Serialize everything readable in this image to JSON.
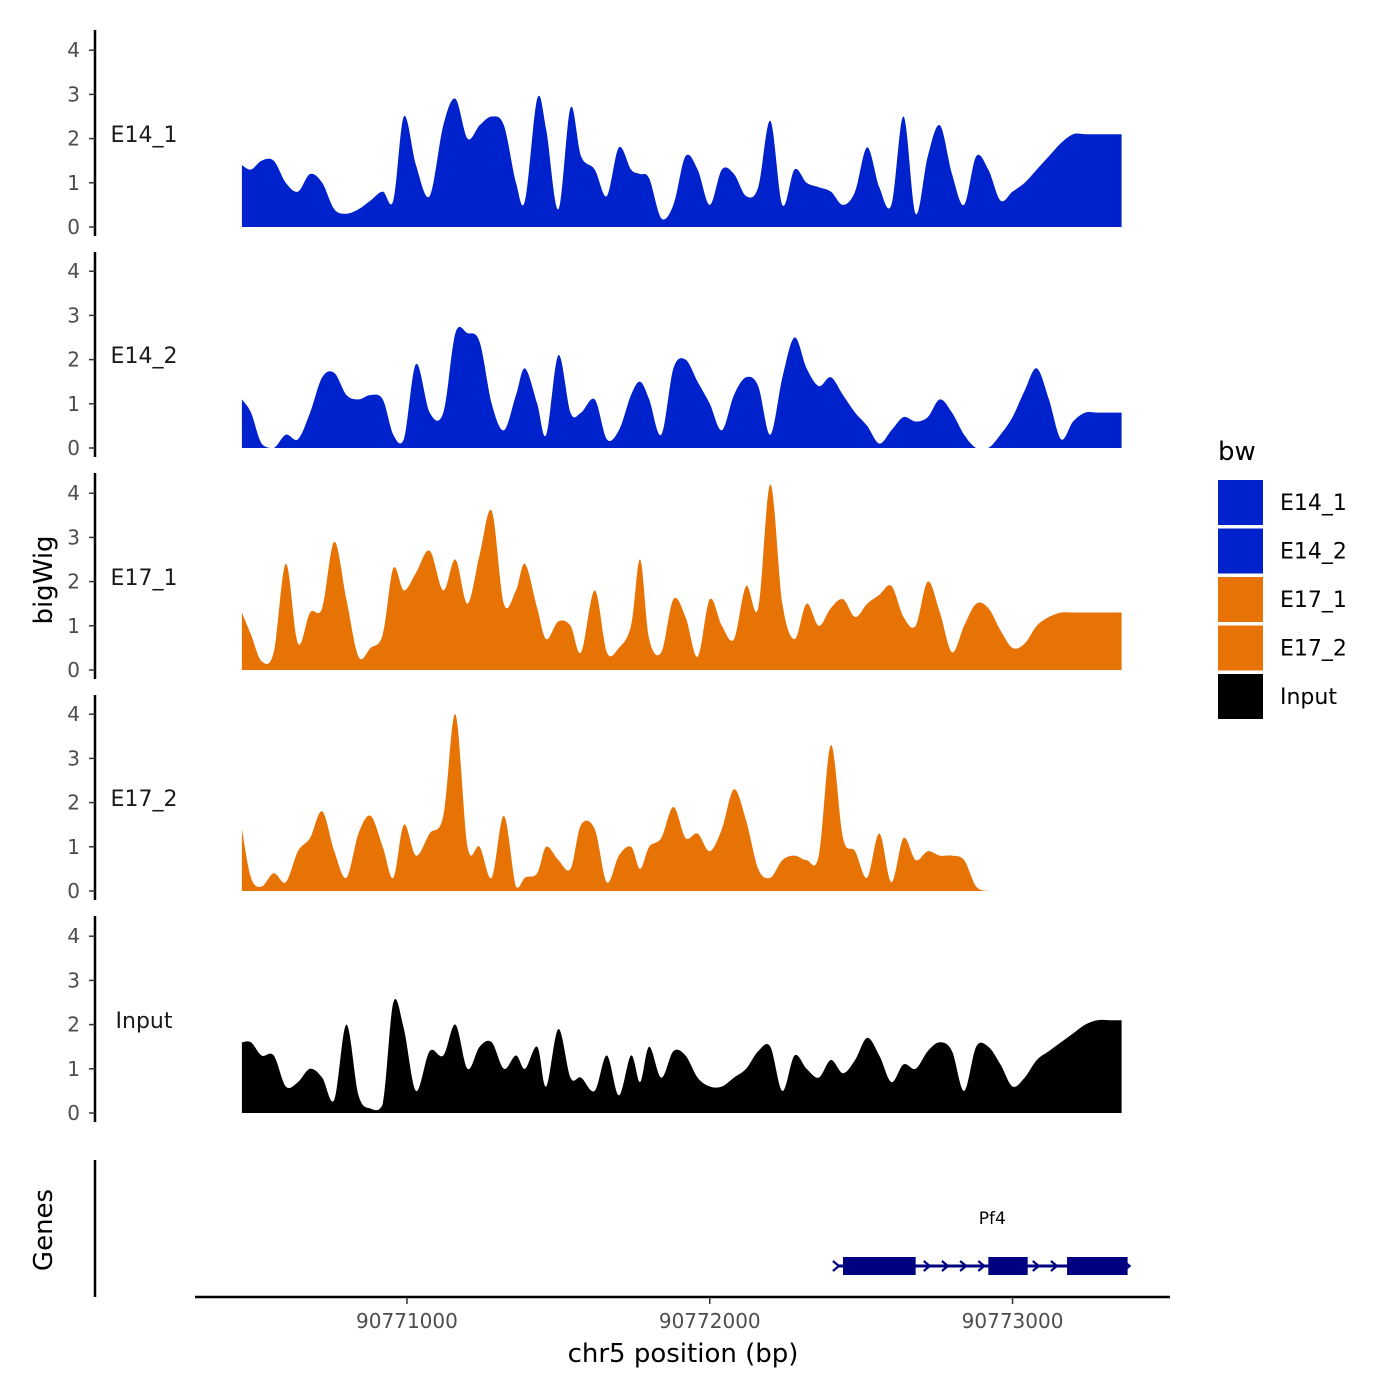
{
  "chart_data": {
    "type": "area",
    "title": "",
    "ylabel": "bigWig",
    "genes_label": "Genes",
    "xlabel": "chr5 position (bp)",
    "xlim": [
      90770300,
      90773520
    ],
    "ylim": [
      0,
      4.5
    ],
    "x_ticks": [
      90771000,
      90772000,
      90773000
    ],
    "x_tick_labels": [
      "90771000",
      "90772000",
      "90773000"
    ],
    "y_ticks": [
      0,
      1,
      2,
      3,
      4
    ],
    "y_tick_labels": [
      "0",
      "1",
      "2",
      "3",
      "4"
    ],
    "legend": {
      "title": "bw",
      "position": "right",
      "entries": [
        {
          "label": "E14_1",
          "color": "#0022CC"
        },
        {
          "label": "E14_2",
          "color": "#0022CC"
        },
        {
          "label": "E17_1",
          "color": "#E87305"
        },
        {
          "label": "E17_2",
          "color": "#E87305"
        },
        {
          "label": "Input",
          "color": "#000000"
        }
      ]
    },
    "series": [
      {
        "name": "E14_1",
        "color": "#0022CC",
        "x": [
          90770455,
          90770485,
          90770520,
          90770560,
          90770600,
          90770640,
          90770680,
          90770720,
          90770760,
          90770800,
          90770840,
          90770880,
          90770920,
          90770955,
          90770990,
          90771030,
          90771075,
          90771120,
          90771160,
          90771200,
          90771240,
          90771280,
          90771320,
          90771360,
          90771390,
          90771430,
          90771460,
          90771500,
          90771540,
          90771575,
          90771620,
          90771660,
          90771700,
          90771740,
          90771770,
          90771800,
          90771840,
          90771880,
          90771920,
          90771960,
          90772000,
          90772040,
          90772080,
          90772120,
          90772160,
          90772200,
          90772240,
          90772280,
          90772320,
          90772360,
          90772400,
          90772440,
          90772480,
          90772520,
          90772560,
          90772600,
          90772640,
          90772680,
          90772720,
          90772760,
          90772800,
          90772840,
          90772880,
          90772920,
          90772960,
          90773000,
          90773040,
          90773080,
          90773120,
          90773160,
          90773200,
          90773240,
          90773280,
          90773320,
          90773360
        ],
        "values": [
          1.4,
          1.3,
          1.5,
          1.5,
          1.0,
          0.8,
          1.2,
          1.0,
          0.4,
          0.3,
          0.4,
          0.6,
          0.8,
          0.6,
          2.5,
          1.4,
          0.7,
          2.3,
          2.9,
          2.0,
          2.3,
          2.5,
          2.3,
          1.0,
          0.6,
          2.9,
          2.2,
          0.4,
          2.7,
          1.6,
          1.3,
          0.7,
          1.8,
          1.3,
          1.2,
          1.1,
          0.2,
          0.5,
          1.6,
          1.3,
          0.5,
          1.3,
          1.2,
          0.7,
          0.9,
          2.4,
          0.5,
          1.3,
          1.0,
          0.9,
          0.8,
          0.5,
          0.8,
          1.8,
          0.9,
          0.5,
          2.5,
          0.3,
          1.6,
          2.3,
          1.2,
          0.5,
          1.6,
          1.3,
          0.6,
          0.8,
          1.0,
          1.3,
          1.6,
          1.9,
          2.1,
          2.1,
          2.1,
          2.1,
          2.1
        ]
      },
      {
        "name": "E14_2",
        "color": "#0022CC",
        "x": [
          90770455,
          90770485,
          90770520,
          90770560,
          90770600,
          90770640,
          90770680,
          90770720,
          90770760,
          90770800,
          90770840,
          90770880,
          90770920,
          90770955,
          90770990,
          90771030,
          90771075,
          90771120,
          90771160,
          90771200,
          90771240,
          90771280,
          90771320,
          90771360,
          90771390,
          90771430,
          90771460,
          90771500,
          90771540,
          90771575,
          90771620,
          90771660,
          90771700,
          90771740,
          90771770,
          90771800,
          90771840,
          90771880,
          90771920,
          90771960,
          90772000,
          90772040,
          90772080,
          90772120,
          90772160,
          90772200,
          90772240,
          90772280,
          90772320,
          90772360,
          90772400,
          90772440,
          90772480,
          90772520,
          90772560,
          90772600,
          90772640,
          90772680,
          90772720,
          90772760,
          90772800,
          90772840,
          90772880,
          90772920,
          90772960,
          90773000,
          90773040,
          90773080,
          90773120,
          90773160,
          90773200,
          90773240,
          90773280,
          90773320,
          90773360
        ],
        "values": [
          1.1,
          0.8,
          0.1,
          0.0,
          0.3,
          0.2,
          0.8,
          1.6,
          1.7,
          1.2,
          1.1,
          1.2,
          1.1,
          0.3,
          0.2,
          1.9,
          0.8,
          0.8,
          2.6,
          2.6,
          2.4,
          1.0,
          0.4,
          1.2,
          1.8,
          1.0,
          0.3,
          2.1,
          0.8,
          0.8,
          1.1,
          0.2,
          0.4,
          1.2,
          1.5,
          1.1,
          0.3,
          1.8,
          2.0,
          1.5,
          1.0,
          0.4,
          1.2,
          1.6,
          1.4,
          0.3,
          1.6,
          2.5,
          1.8,
          1.4,
          1.6,
          1.2,
          0.8,
          0.5,
          0.1,
          0.4,
          0.7,
          0.6,
          0.7,
          1.1,
          0.8,
          0.3,
          0.0,
          0.0,
          0.3,
          0.7,
          1.3,
          1.8,
          1.1,
          0.2,
          0.6,
          0.8,
          0.8,
          0.8,
          0.8
        ]
      },
      {
        "name": "E17_1",
        "color": "#E87305",
        "x": [
          90770455,
          90770485,
          90770520,
          90770560,
          90770600,
          90770640,
          90770680,
          90770720,
          90770760,
          90770800,
          90770840,
          90770880,
          90770920,
          90770955,
          90770990,
          90771030,
          90771075,
          90771120,
          90771160,
          90771200,
          90771240,
          90771280,
          90771320,
          90771360,
          90771390,
          90771430,
          90771460,
          90771500,
          90771540,
          90771575,
          90771620,
          90771660,
          90771700,
          90771740,
          90771770,
          90771800,
          90771840,
          90771880,
          90771920,
          90771960,
          90772000,
          90772040,
          90772080,
          90772120,
          90772160,
          90772200,
          90772240,
          90772280,
          90772320,
          90772360,
          90772400,
          90772440,
          90772480,
          90772520,
          90772560,
          90772600,
          90772640,
          90772680,
          90772720,
          90772760,
          90772800,
          90772840,
          90772880,
          90772920,
          90772960,
          90773000,
          90773040,
          90773080,
          90773120,
          90773160,
          90773200,
          90773240,
          90773280,
          90773320,
          90773360
        ],
        "values": [
          1.3,
          0.8,
          0.2,
          0.4,
          2.4,
          0.6,
          1.3,
          1.4,
          2.9,
          1.6,
          0.3,
          0.5,
          0.8,
          2.3,
          1.8,
          2.2,
          2.7,
          1.8,
          2.5,
          1.5,
          2.6,
          3.6,
          1.5,
          1.8,
          2.4,
          1.4,
          0.7,
          1.1,
          1.0,
          0.4,
          1.8,
          0.4,
          0.5,
          1.0,
          2.5,
          0.7,
          0.4,
          1.6,
          1.2,
          0.3,
          1.6,
          1.0,
          0.7,
          1.9,
          1.4,
          4.2,
          1.5,
          0.7,
          1.5,
          1.0,
          1.4,
          1.6,
          1.2,
          1.5,
          1.7,
          1.9,
          1.2,
          1.0,
          2.0,
          1.3,
          0.4,
          1.0,
          1.5,
          1.4,
          0.9,
          0.5,
          0.6,
          1.0,
          1.2,
          1.3,
          1.3,
          1.3,
          1.3,
          1.3,
          1.3
        ]
      },
      {
        "name": "E17_2",
        "color": "#E87305",
        "x": [
          90770455,
          90770485,
          90770520,
          90770560,
          90770600,
          90770640,
          90770680,
          90770720,
          90770760,
          90770800,
          90770840,
          90770880,
          90770920,
          90770955,
          90770990,
          90771030,
          90771075,
          90771120,
          90771160,
          90771200,
          90771240,
          90771280,
          90771320,
          90771360,
          90771390,
          90771430,
          90771460,
          90771500,
          90771540,
          90771575,
          90771620,
          90771660,
          90771700,
          90771740,
          90771770,
          90771800,
          90771840,
          90771880,
          90771920,
          90771960,
          90772000,
          90772040,
          90772080,
          90772120,
          90772160,
          90772200,
          90772240,
          90772280,
          90772320,
          90772360,
          90772400,
          90772440,
          90772480,
          90772520,
          90772560,
          90772600,
          90772640,
          90772680,
          90772720,
          90772760,
          90772800,
          90772840,
          90772880,
          90772920,
          90772960,
          90773000,
          90773040,
          90773080,
          90773120,
          90773160,
          90773200,
          90773240,
          90773280,
          90773320,
          90773360
        ],
        "values": [
          1.4,
          0.3,
          0.1,
          0.4,
          0.2,
          0.9,
          1.2,
          1.8,
          0.9,
          0.3,
          1.3,
          1.7,
          1.0,
          0.3,
          1.5,
          0.8,
          1.3,
          1.7,
          4.0,
          1.0,
          1.0,
          0.3,
          1.7,
          0.1,
          0.3,
          0.4,
          1.0,
          0.7,
          0.5,
          1.5,
          1.4,
          0.2,
          0.8,
          1.0,
          0.5,
          1.0,
          1.2,
          1.9,
          1.2,
          1.3,
          0.9,
          1.4,
          2.3,
          1.6,
          0.5,
          0.3,
          0.7,
          0.8,
          0.7,
          0.8,
          3.3,
          1.2,
          0.9,
          0.3,
          1.3,
          0.2,
          1.2,
          0.7,
          0.9,
          0.8,
          0.8,
          0.7,
          0.1,
          0.0,
          0.0,
          0.0,
          0.0,
          0.0,
          0.0,
          0.0,
          0.0,
          0.0,
          0.0,
          0.0,
          0.0
        ]
      },
      {
        "name": "Input",
        "color": "#000000",
        "x": [
          90770455,
          90770485,
          90770520,
          90770560,
          90770600,
          90770640,
          90770680,
          90770720,
          90770760,
          90770800,
          90770840,
          90770880,
          90770920,
          90770955,
          90770990,
          90771030,
          90771075,
          90771120,
          90771160,
          90771200,
          90771240,
          90771280,
          90771320,
          90771360,
          90771390,
          90771430,
          90771460,
          90771500,
          90771540,
          90771575,
          90771620,
          90771660,
          90771700,
          90771740,
          90771770,
          90771800,
          90771840,
          90771880,
          90771920,
          90771960,
          90772000,
          90772040,
          90772080,
          90772120,
          90772160,
          90772200,
          90772240,
          90772280,
          90772320,
          90772360,
          90772400,
          90772440,
          90772480,
          90772520,
          90772560,
          90772600,
          90772640,
          90772680,
          90772720,
          90772760,
          90772800,
          90772840,
          90772880,
          90772920,
          90772960,
          90773000,
          90773040,
          90773080,
          90773120,
          90773160,
          90773200,
          90773240,
          90773280,
          90773320,
          90773360
        ],
        "values": [
          1.6,
          1.6,
          1.3,
          1.3,
          0.6,
          0.7,
          1.0,
          0.8,
          0.3,
          2.0,
          0.4,
          0.1,
          0.2,
          2.5,
          1.9,
          0.5,
          1.4,
          1.3,
          2.0,
          1.0,
          1.5,
          1.6,
          1.0,
          1.3,
          1.0,
          1.5,
          0.6,
          1.9,
          0.8,
          0.8,
          0.5,
          1.3,
          0.4,
          1.3,
          0.7,
          1.5,
          0.8,
          1.4,
          1.3,
          0.8,
          0.6,
          0.6,
          0.8,
          1.0,
          1.4,
          1.5,
          0.5,
          1.3,
          1.0,
          0.8,
          1.2,
          0.9,
          1.2,
          1.7,
          1.3,
          0.7,
          1.1,
          1.0,
          1.4,
          1.6,
          1.4,
          0.5,
          1.5,
          1.5,
          1.1,
          0.6,
          0.8,
          1.2,
          1.4,
          1.6,
          1.8,
          2.0,
          2.1,
          2.1,
          2.1
        ]
      }
    ],
    "genes": [
      {
        "name": "Pf4",
        "color": "#000080",
        "start": 90772420,
        "end": 90773380,
        "strand": "+",
        "exons": [
          [
            90772440,
            90772680
          ],
          [
            90772920,
            90773050
          ],
          [
            90773180,
            90773380
          ]
        ]
      }
    ]
  }
}
